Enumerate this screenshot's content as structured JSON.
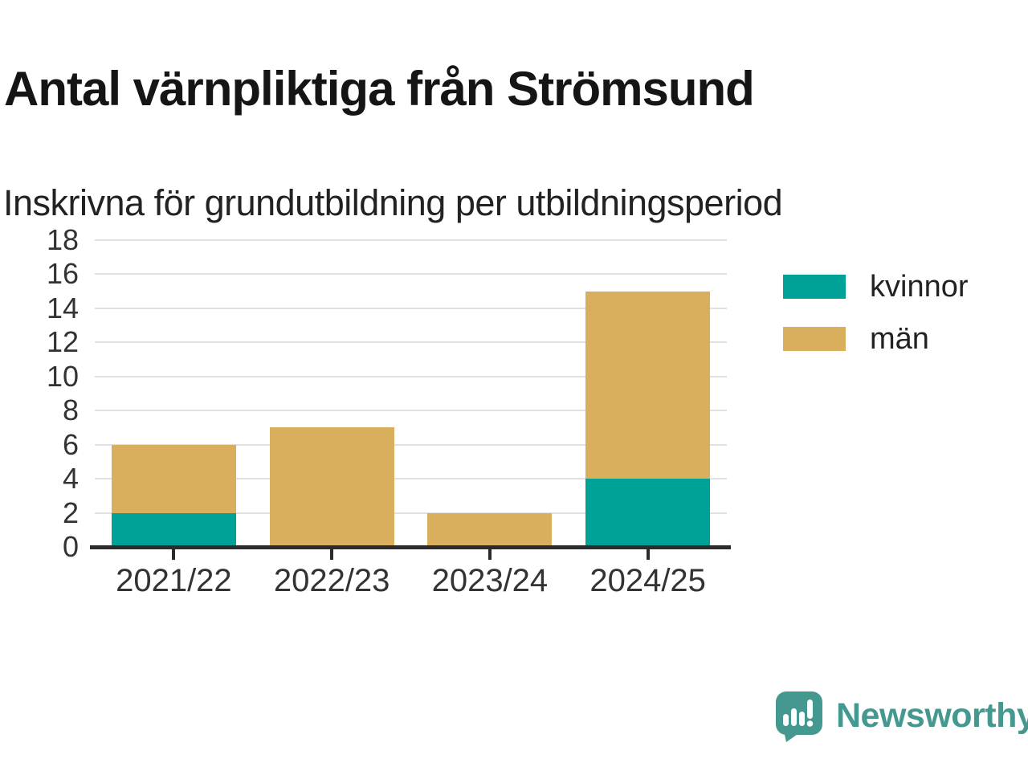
{
  "header": {
    "title": "Antal värnpliktiga från Strömsund",
    "subtitle": "Inskrivna för grundutbildning per utbildningsperiod"
  },
  "chart_data": {
    "type": "bar",
    "stacked": true,
    "title": "Antal värnpliktiga från Strömsund",
    "subtitle": "Inskrivna för grundutbildning per utbildningsperiod",
    "categories": [
      "2021/22",
      "2022/23",
      "2023/24",
      "2024/25"
    ],
    "series": [
      {
        "name": "kvinnor",
        "color": "#00A298",
        "values": [
          2,
          0,
          0,
          4
        ]
      },
      {
        "name": "män",
        "color": "#D9AE5C",
        "values": [
          4,
          7,
          2,
          11
        ]
      }
    ],
    "totals": [
      6,
      7,
      2,
      15
    ],
    "xlabel": "",
    "ylabel": "",
    "ylim": [
      0,
      18
    ],
    "yticks": [
      0,
      2,
      4,
      6,
      8,
      10,
      12,
      14,
      16,
      18
    ],
    "grid": "horizontal-on",
    "legend_position": "right"
  },
  "footer": {
    "brand": "Newsworthy",
    "brand_color": "#45988F",
    "logo_icon": "chart-speech-bubble-icon"
  },
  "colors": {
    "kvinnor": "#00A298",
    "man": "#D9AE5C",
    "axis": "#2b2b2b",
    "grid": "#e1e1e1",
    "tick_text": "#333333",
    "title_text": "#151515"
  }
}
